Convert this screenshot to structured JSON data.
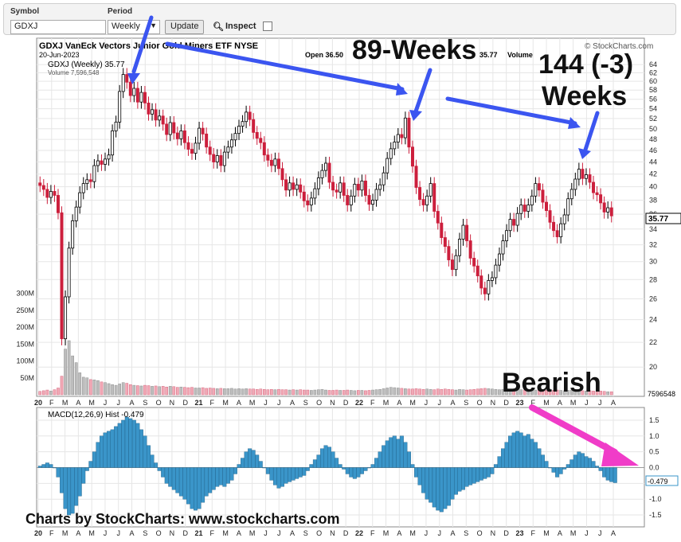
{
  "toolbar": {
    "symbol_label": "Symbol",
    "symbol_value": "GDXJ",
    "period_label": "Period",
    "period_value": "Weekly",
    "update_label": "Update",
    "inspect_label": "Inspect"
  },
  "chart_header": {
    "title": "GDXJ VanEck Vectors Junior Gold Miners ETF  NYSE",
    "date": "20-Jun-2023",
    "open_text": "Open 36.50",
    "last_text": "35.77",
    "volume_text": "Volume",
    "brand": "© StockCharts.com",
    "legend_price": "GDXJ (Weekly) 35.77",
    "legend_volume": "Volume 7,596,548",
    "last_price_tag": "35.77",
    "volume_tag": "7596548",
    "macd_legend": "MACD(12,26,9) Hist -0.479",
    "macd_tag": "-0.479",
    "footer": "Charts by StockCharts:  www.stockcharts.com"
  },
  "annotations": {
    "a89": "89-Weeks",
    "a144_line1": "144 (-3)",
    "a144_line2": "Weeks",
    "bearish": "Bearish"
  },
  "colors": {
    "up": "#000000",
    "down": "#cc1f3c",
    "arrow_blue": "#3b55f0",
    "arrow_pink": "#f03cc8",
    "macd_hist": "#3a95c9",
    "grid": "#e6e6e6"
  },
  "chart_data": [
    {
      "type": "candlestick",
      "title": "GDXJ VanEck Vectors Junior Gold Miners ETF  NYSE",
      "series_name": "GDXJ (Weekly) 35.77",
      "x_labels": [
        "20",
        "F",
        "M",
        "A",
        "M",
        "J",
        "J",
        "A",
        "S",
        "O",
        "N",
        "D",
        "21",
        "F",
        "M",
        "A",
        "M",
        "J",
        "J",
        "A",
        "S",
        "O",
        "N",
        "D",
        "22",
        "F",
        "M",
        "A",
        "M",
        "J",
        "J",
        "A",
        "S",
        "O",
        "N",
        "D",
        "23",
        "F",
        "M",
        "A",
        "M",
        "J",
        "J",
        "A"
      ],
      "y_ticks": [
        20,
        22,
        24,
        26,
        28,
        30,
        32,
        34,
        36,
        38,
        40,
        42,
        44,
        46,
        48,
        50,
        52,
        54,
        56,
        58,
        60,
        62,
        64
      ],
      "y_scale": "log",
      "ylim": [
        19,
        65
      ],
      "closes": [
        40.2,
        39.6,
        38.4,
        39.3,
        38.7,
        36.2,
        22.3,
        26.2,
        31.6,
        35.1,
        37.0,
        39.1,
        40.5,
        41.1,
        40.8,
        43.4,
        44.2,
        43.6,
        44.5,
        45.2,
        49.6,
        51.3,
        57.7,
        61.6,
        59.8,
        56.8,
        58.4,
        55.4,
        57.5,
        55.2,
        52.9,
        53.8,
        51.7,
        52.5,
        50.9,
        48.9,
        51.2,
        49.2,
        48.1,
        49.6,
        47.4,
        46.2,
        45.5,
        47.3,
        50.1,
        49.0,
        46.6,
        45.3,
        44.0,
        45.1,
        43.4,
        45.7,
        46.6,
        47.9,
        49.1,
        50.5,
        51.4,
        53.3,
        51.8,
        49.3,
        48.2,
        47.4,
        45.2,
        44.3,
        43.4,
        44.5,
        42.9,
        41.1,
        39.5,
        40.6,
        39.6,
        40.3,
        39.2,
        37.9,
        37.3,
        38.3,
        39.7,
        41.4,
        42.6,
        43.8,
        40.7,
        39.5,
        39.2,
        40.6,
        38.7,
        37.3,
        38.6,
        40.4,
        39.5,
        40.9,
        38.7,
        37.4,
        38.0,
        39.6,
        40.3,
        42.2,
        44.6,
        46.3,
        47.5,
        48.9,
        48.3,
        52.1,
        46.6,
        43.3,
        39.9,
        38.1,
        37.3,
        38.6,
        40.5,
        36.4,
        34.8,
        32.9,
        31.8,
        30.2,
        29.1,
        30.7,
        32.7,
        34.5,
        32.5,
        30.4,
        29.5,
        28.4,
        27.1,
        26.5,
        27.9,
        28.2,
        29.6,
        30.9,
        32.5,
        33.8,
        35.3,
        34.5,
        36.1,
        37.3,
        36.4,
        37.3,
        38.6,
        40.5,
        39.5,
        37.7,
        36.5,
        34.9,
        33.8,
        33.0,
        34.7,
        35.9,
        38.2,
        39.6,
        41.2,
        42.8,
        41.3,
        41.9,
        40.7,
        39.1,
        38.8,
        37.6,
        36.3,
        36.9,
        35.77
      ]
    },
    {
      "type": "bar",
      "title": "",
      "series_name": "Volume 7,596,548",
      "y_ticks_labels": [
        "50M",
        "100M",
        "150M",
        "200M",
        "250M",
        "300M"
      ],
      "y_ticks": [
        50,
        100,
        150,
        200,
        250,
        300
      ],
      "unit": "M",
      "values_m": [
        10,
        12,
        14,
        11,
        15,
        20,
        55,
        135,
        160,
        115,
        95,
        65,
        52,
        50,
        45,
        44,
        42,
        38,
        36,
        33,
        30,
        28,
        32,
        36,
        34,
        30,
        28,
        27,
        26,
        28,
        27,
        25,
        26,
        24,
        25,
        23,
        25,
        24,
        22,
        23,
        22,
        21,
        22,
        20,
        20,
        21,
        19,
        20,
        19,
        18,
        19,
        18,
        18,
        19,
        17,
        18,
        17,
        18,
        17,
        17,
        16,
        17,
        16,
        15,
        16,
        15,
        16,
        15,
        15,
        14,
        15,
        14,
        15,
        14,
        14,
        13,
        14,
        15,
        16,
        14,
        13,
        13,
        14,
        13,
        13,
        14,
        13,
        12,
        13,
        13,
        12,
        13,
        14,
        15,
        16,
        18,
        20,
        22,
        21,
        20,
        19,
        18,
        17,
        17,
        18,
        17,
        16,
        17,
        16,
        15,
        17,
        16,
        17,
        16,
        15,
        14,
        16,
        15,
        14,
        15,
        16,
        17,
        18,
        19,
        18,
        17,
        16,
        15,
        16,
        15,
        14,
        16,
        17,
        15,
        14,
        15,
        13,
        14,
        15,
        14,
        13,
        14,
        13,
        14,
        13,
        12,
        13,
        14,
        15,
        13,
        12,
        11,
        12,
        11,
        10,
        11,
        10,
        9,
        9,
        8
      ]
    },
    {
      "type": "bar",
      "title": "",
      "series_name": "MACD(12,26,9) Hist -0.479",
      "y_ticks": [
        -1.5,
        -1.0,
        -0.5,
        0.0,
        0.5,
        1.0,
        1.5
      ],
      "ylim": [
        -1.7,
        1.7
      ],
      "values": [
        0.05,
        0.1,
        0.15,
        0.1,
        0.0,
        -0.3,
        -0.8,
        -1.3,
        -1.5,
        -1.45,
        -1.2,
        -0.9,
        -0.5,
        -0.1,
        0.2,
        0.5,
        0.8,
        1.0,
        1.1,
        1.15,
        1.2,
        1.3,
        1.4,
        1.5,
        1.6,
        1.55,
        1.5,
        1.4,
        1.2,
        1.0,
        0.7,
        0.4,
        0.15,
        -0.1,
        -0.3,
        -0.5,
        -0.6,
        -0.7,
        -0.8,
        -0.9,
        -1.0,
        -1.15,
        -1.3,
        -1.35,
        -1.3,
        -1.1,
        -0.9,
        -0.8,
        -0.7,
        -0.6,
        -0.55,
        -0.6,
        -0.5,
        -0.4,
        -0.2,
        0.1,
        0.3,
        0.5,
        0.6,
        0.55,
        0.4,
        0.2,
        0.0,
        -0.2,
        -0.4,
        -0.55,
        -0.65,
        -0.6,
        -0.5,
        -0.45,
        -0.4,
        -0.35,
        -0.3,
        -0.25,
        -0.1,
        0.1,
        0.25,
        0.4,
        0.6,
        0.7,
        0.65,
        0.5,
        0.3,
        0.1,
        -0.05,
        -0.2,
        -0.3,
        -0.35,
        -0.3,
        -0.2,
        -0.1,
        0.0,
        0.1,
        0.3,
        0.5,
        0.7,
        0.85,
        0.95,
        1.0,
        0.9,
        1.0,
        0.8,
        0.5,
        0.1,
        -0.3,
        -0.55,
        -0.8,
        -1.0,
        -1.1,
        -1.25,
        -1.35,
        -1.4,
        -1.3,
        -1.2,
        -1.0,
        -0.85,
        -0.75,
        -0.7,
        -0.6,
        -0.55,
        -0.5,
        -0.45,
        -0.4,
        -0.35,
        -0.3,
        -0.2,
        0.1,
        0.35,
        0.6,
        0.8,
        1.0,
        1.1,
        1.15,
        1.1,
        1.0,
        1.05,
        0.9,
        0.8,
        0.6,
        0.4,
        0.2,
        0.0,
        -0.15,
        -0.3,
        -0.2,
        -0.05,
        0.1,
        0.25,
        0.4,
        0.5,
        0.45,
        0.35,
        0.3,
        0.2,
        0.05,
        -0.1,
        -0.3,
        -0.4,
        -0.45,
        -0.479
      ]
    }
  ]
}
